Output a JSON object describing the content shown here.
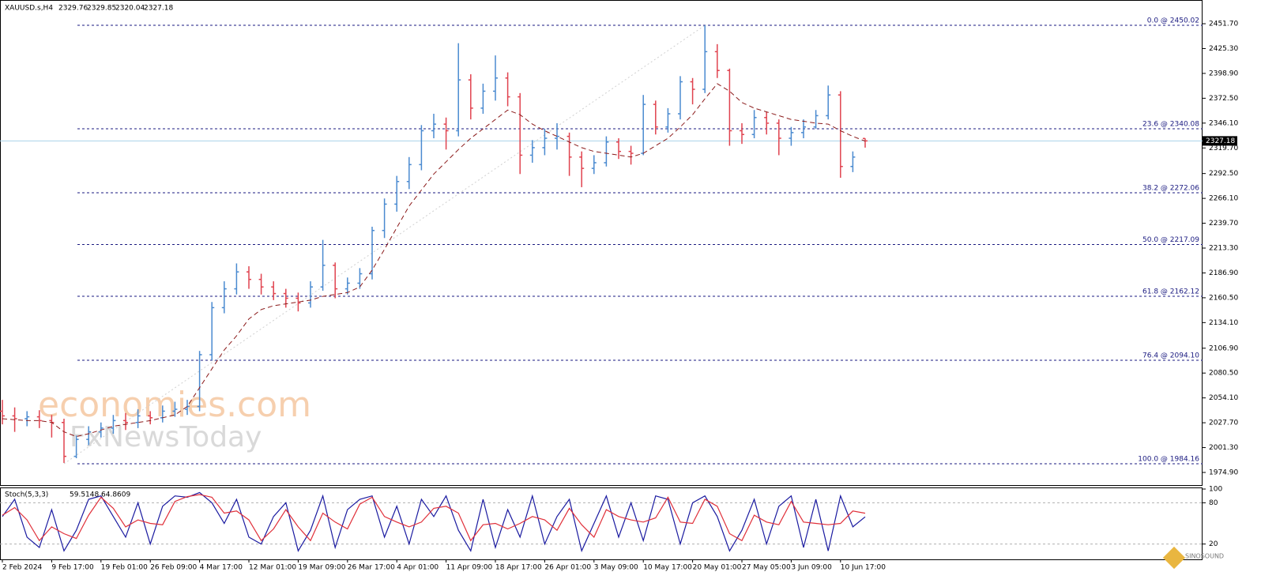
{
  "chart_data": [
    {
      "type": "ohlc",
      "title": "XAUUSD.s,H4",
      "categories": [
        "2 Feb 2024",
        null,
        null,
        null,
        "9 Feb 17:00",
        null,
        null,
        null,
        "19 Feb 01:00",
        null,
        null,
        null,
        "26 Feb 09:00",
        null,
        null,
        null,
        "4 Mar 17:00",
        null,
        null,
        null,
        "12 Mar 01:00",
        null,
        null,
        null,
        "19 Mar 09:00",
        null,
        null,
        null,
        "26 Mar 17:00",
        null,
        null,
        null,
        "4 Apr 01:00",
        null,
        null,
        null,
        "11 Apr 09:00",
        null,
        null,
        null,
        "18 Apr 17:00",
        null,
        null,
        null,
        "26 Apr 01:00",
        null,
        null,
        null,
        "3 May 09:00",
        null,
        null,
        null,
        "10 May 17:00",
        null,
        null,
        null,
        "20 May 01:00",
        null,
        null,
        null,
        "27 May 05:00",
        null,
        null,
        null,
        "3 Jun 09:00",
        null,
        null,
        null,
        "10 Jun 17:00",
        null,
        null
      ],
      "open": [
        2040,
        2035,
        2032,
        2034,
        2030,
        2028,
        1992,
        2010,
        2018,
        2022,
        2030,
        2028,
        2035,
        2033,
        2040,
        2042,
        2045,
        2100,
        2150,
        2170,
        2188,
        2180,
        2172,
        2165,
        2160,
        2155,
        2172,
        2195,
        2170,
        2176,
        2186,
        2232,
        2260,
        2284,
        2302,
        2338,
        2345,
        2338,
        2392,
        2362,
        2380,
        2394,
        2374,
        2312,
        2320,
        2330,
        2332,
        2310,
        2298,
        2304,
        2326,
        2316,
        2314,
        2366,
        2342,
        2356,
        2390,
        2382,
        2422,
        2402,
        2338,
        2334,
        2352,
        2346,
        2330,
        2336,
        2342,
        2354,
        2376,
        2300,
        2329.76
      ],
      "high": [
        2052,
        2044,
        2040,
        2041,
        2036,
        2032,
        2014,
        2024,
        2028,
        2036,
        2038,
        2042,
        2040,
        2046,
        2050,
        2052,
        2104,
        2156,
        2178,
        2197,
        2194,
        2186,
        2178,
        2170,
        2166,
        2178,
        2222,
        2198,
        2182,
        2192,
        2236,
        2266,
        2290,
        2310,
        2344,
        2356,
        2352,
        2431,
        2398,
        2388,
        2418,
        2400,
        2378,
        2328,
        2340,
        2346,
        2336,
        2316,
        2312,
        2332,
        2330,
        2322,
        2376,
        2370,
        2362,
        2396,
        2394,
        2450,
        2430,
        2404,
        2346,
        2360,
        2358,
        2350,
        2342,
        2350,
        2360,
        2386,
        2380,
        2316,
        2329.85
      ],
      "low": [
        2026,
        2018,
        2024,
        2022,
        2012,
        1985,
        1990,
        2004,
        2012,
        2016,
        2020,
        2022,
        2026,
        2028,
        2034,
        2036,
        2040,
        2094,
        2144,
        2164,
        2170,
        2164,
        2158,
        2150,
        2146,
        2150,
        2168,
        2160,
        2164,
        2170,
        2180,
        2224,
        2252,
        2276,
        2296,
        2330,
        2318,
        2332,
        2350,
        2356,
        2370,
        2364,
        2292,
        2304,
        2312,
        2318,
        2290,
        2278,
        2292,
        2300,
        2308,
        2302,
        2312,
        2334,
        2336,
        2350,
        2366,
        2378,
        2394,
        2322,
        2324,
        2330,
        2334,
        2312,
        2322,
        2330,
        2340,
        2350,
        2288,
        2294,
        2320.04
      ],
      "close": [
        2035,
        2032,
        2034,
        2030,
        2028,
        1992,
        2010,
        2018,
        2022,
        2030,
        2028,
        2035,
        2033,
        2040,
        2042,
        2045,
        2100,
        2150,
        2170,
        2188,
        2180,
        2172,
        2165,
        2160,
        2155,
        2172,
        2195,
        2170,
        2176,
        2186,
        2232,
        2260,
        2284,
        2302,
        2338,
        2345,
        2338,
        2392,
        2362,
        2380,
        2394,
        2374,
        2312,
        2320,
        2330,
        2332,
        2310,
        2298,
        2304,
        2326,
        2316,
        2314,
        2366,
        2342,
        2356,
        2390,
        2382,
        2422,
        2402,
        2338,
        2334,
        2352,
        2346,
        2330,
        2336,
        2342,
        2354,
        2376,
        2300,
        2310,
        2327.18
      ],
      "up_color": "#4a8ad0",
      "down_color": "#e0434f",
      "ma": {
        "color": "#8b1a1a",
        "values": [
          2032,
          2031,
          2030,
          2030,
          2028,
          2018,
          2013,
          2016,
          2020,
          2024,
          2026,
          2028,
          2030,
          2033,
          2036,
          2045,
          2065,
          2085,
          2105,
          2120,
          2138,
          2148,
          2152,
          2154,
          2156,
          2158,
          2162,
          2164,
          2166,
          2172,
          2190,
          2212,
          2235,
          2258,
          2275,
          2292,
          2305,
          2318,
          2330,
          2340,
          2350,
          2360,
          2355,
          2345,
          2338,
          2332,
          2326,
          2320,
          2316,
          2314,
          2312,
          2310,
          2314,
          2322,
          2330,
          2342,
          2355,
          2372,
          2388,
          2380,
          2368,
          2362,
          2358,
          2354,
          2350,
          2348,
          2346,
          2345,
          2338,
          2332,
          2327
        ]
      },
      "ylim": [
        1962.3,
        2476.9
      ],
      "yticks": [
        {
          "value": 2451.7,
          "label": "2451.70"
        },
        {
          "value": 2425.3,
          "label": "2425.30"
        },
        {
          "value": 2398.9,
          "label": "2398.90"
        },
        {
          "value": 2372.5,
          "label": "2372.50"
        },
        {
          "value": 2346.1,
          "label": "2346.10"
        },
        {
          "value": 2319.7,
          "label": "2319.70"
        },
        {
          "value": 2292.5,
          "label": "2292.50"
        },
        {
          "value": 2266.1,
          "label": "2266.10"
        },
        {
          "value": 2239.7,
          "label": "2239.70"
        },
        {
          "value": 2213.3,
          "label": "2213.30"
        },
        {
          "value": 2186.9,
          "label": "2186.90"
        },
        {
          "value": 2160.5,
          "label": "2160.50"
        },
        {
          "value": 2134.1,
          "label": "2134.10"
        },
        {
          "value": 2106.9,
          "label": "2106.90"
        },
        {
          "value": 2080.5,
          "label": "2080.50"
        },
        {
          "value": 2054.1,
          "label": "2054.10"
        },
        {
          "value": 2027.7,
          "label": "2027.70"
        },
        {
          "value": 2001.3,
          "label": "2001.30"
        },
        {
          "value": 1974.9,
          "label": "1974.90"
        }
      ],
      "fib_color": "#1a1a80",
      "fib_levels": [
        {
          "value": 2450.02,
          "label": "0.0 @ 2450.02"
        },
        {
          "value": 2340.08,
          "label": "23.6 @ 2340.08"
        },
        {
          "value": 2272.06,
          "label": "38.2 @ 2272.06"
        },
        {
          "value": 2217.09,
          "label": "50.0 @ 2217.09"
        },
        {
          "value": 2162.12,
          "label": "61.8 @ 2162.12"
        },
        {
          "value": 2094.1,
          "label": "76.4 @ 2094.10"
        },
        {
          "value": 1984.16,
          "label": "100.0 @ 1984.16"
        }
      ],
      "price_line_color": "#a9d3e8"
    },
    {
      "type": "line",
      "title": "Stoch(5,3,3)",
      "series": [
        {
          "color": "#1a1aa0",
          "values": [
            60,
            85,
            30,
            15,
            70,
            10,
            40,
            85,
            90,
            60,
            30,
            80,
            20,
            75,
            90,
            88,
            95,
            80,
            50,
            85,
            30,
            20,
            60,
            80,
            10,
            40,
            90,
            15,
            70,
            85,
            90,
            30,
            75,
            20,
            85,
            60,
            90,
            40,
            10,
            85,
            15,
            70,
            30,
            90,
            20,
            60,
            85,
            10,
            50,
            90,
            30,
            80,
            25,
            90,
            85,
            20,
            80,
            90,
            60,
            10,
            40,
            85,
            20,
            75,
            90,
            15,
            85,
            10,
            90,
            45,
            59.5148
          ]
        },
        {
          "color": "#e0303a",
          "values": [
            62,
            73,
            55,
            25,
            45,
            35,
            28,
            62,
            88,
            72,
            45,
            55,
            50,
            48,
            82,
            89,
            92,
            88,
            65,
            68,
            55,
            25,
            42,
            70,
            45,
            25,
            65,
            52,
            42,
            78,
            88,
            60,
            52,
            45,
            52,
            72,
            75,
            65,
            25,
            48,
            50,
            42,
            50,
            60,
            55,
            40,
            72,
            48,
            30,
            70,
            60,
            55,
            52,
            58,
            88,
            52,
            50,
            85,
            75,
            35,
            25,
            62,
            52,
            48,
            82,
            52,
            50,
            48,
            50,
            68,
            64.8609
          ]
        }
      ],
      "ylim": [
        0,
        100
      ],
      "yticks": [
        100,
        80,
        20
      ],
      "levels": [
        80,
        20
      ]
    }
  ],
  "watermarks": [
    "economies.com",
    "FxNewsToday"
  ],
  "logo_text": "SINOSOUND"
}
